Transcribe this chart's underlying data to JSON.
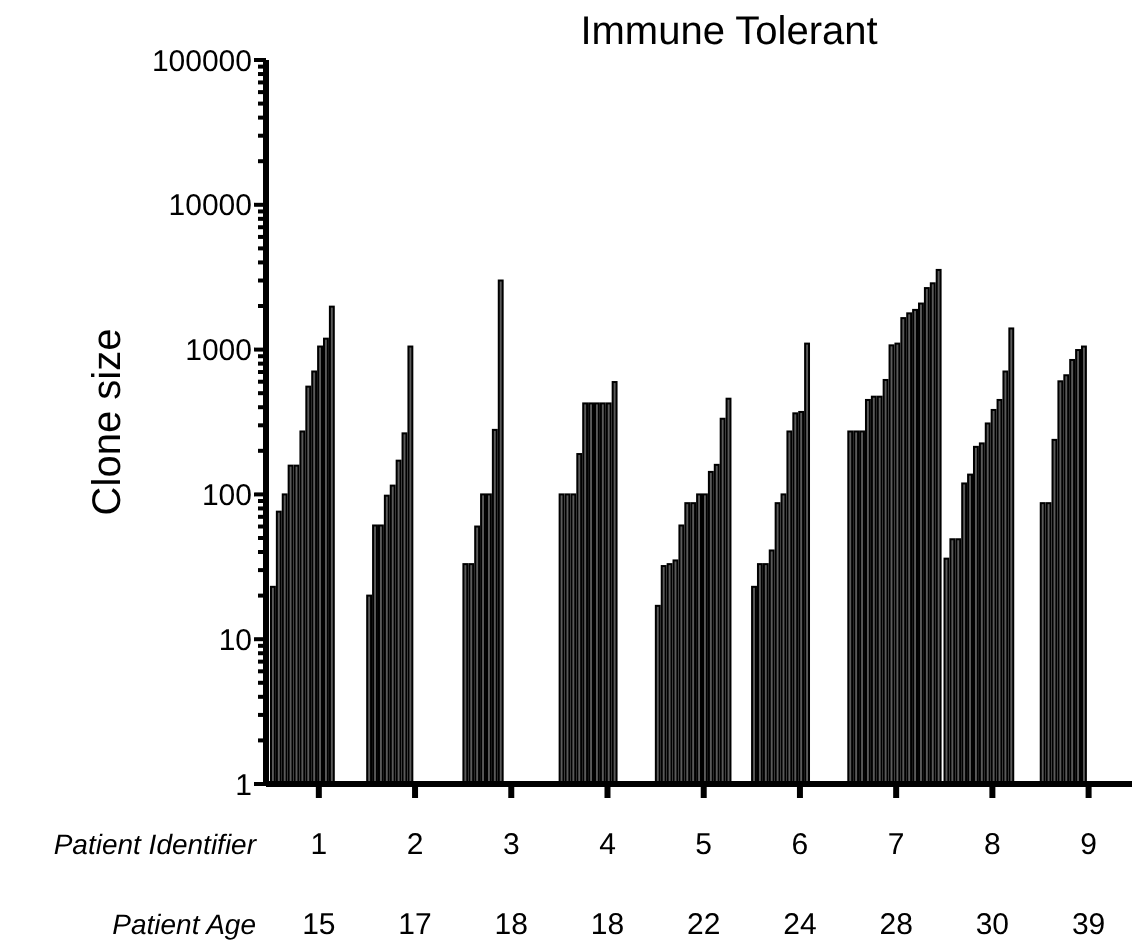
{
  "chart_data": {
    "type": "bar",
    "title": "Immune Tolerant",
    "ylabel": "Clone size",
    "xlabel": "Patient Identifier",
    "categories": [
      "1",
      "2",
      "3",
      "4",
      "5",
      "6",
      "7",
      "8",
      "9"
    ],
    "series": [
      {
        "color": "#5a5a5a",
        "values": [
          23,
          20,
          33,
          100,
          17,
          23,
          272,
          36,
          87
        ]
      },
      {
        "color": "#5a5a5a",
        "values": [
          76,
          61,
          33,
          100,
          32,
          33,
          272,
          49,
          87
        ]
      },
      {
        "color": "#5a5a5a",
        "values": [
          100,
          61,
          60,
          100,
          33,
          33,
          272,
          49,
          238
        ]
      },
      {
        "color": "#5a5a5a",
        "values": [
          158,
          98,
          100,
          190,
          35,
          41,
          449,
          119,
          604
        ]
      },
      {
        "color": "#5a5a5a",
        "values": [
          158,
          115,
          100,
          425,
          61,
          87,
          473,
          137,
          665
        ]
      },
      {
        "color": "#5a5a5a",
        "values": [
          272,
          171,
          279,
          425,
          87,
          100,
          473,
          213,
          848
        ]
      },
      {
        "color": "#5a5a5a",
        "values": [
          555,
          264,
          3000,
          425,
          87,
          272,
          617,
          225,
          993
        ]
      },
      {
        "color": "#5a5a5a",
        "values": [
          706,
          1050,
          null,
          425,
          100,
          363,
          1070,
          309,
          1050
        ]
      },
      {
        "color": "#5a5a5a",
        "values": [
          1050,
          null,
          null,
          425,
          100,
          371,
          1100,
          383,
          null
        ]
      },
      {
        "color": "#5a5a5a",
        "values": [
          1190,
          null,
          null,
          597,
          143,
          1100,
          1650,
          449,
          null
        ]
      },
      {
        "color": "#5a5a5a",
        "values": [
          1980,
          null,
          null,
          null,
          160,
          null,
          1780,
          706,
          null
        ]
      },
      {
        "color": "#5a5a5a",
        "values": [
          null,
          null,
          null,
          null,
          333,
          null,
          1880,
          1400,
          null
        ]
      },
      {
        "color": "#5a5a5a",
        "values": [
          null,
          null,
          null,
          null,
          458,
          null,
          2080,
          null,
          null
        ]
      },
      {
        "color": "#5a5a5a",
        "values": [
          null,
          null,
          null,
          null,
          null,
          null,
          2660,
          null,
          null
        ]
      },
      {
        "color": "#5a5a5a",
        "values": [
          null,
          null,
          null,
          null,
          null,
          null,
          2870,
          null,
          null
        ]
      },
      {
        "color": "#5a5a5a",
        "values": [
          null,
          null,
          null,
          null,
          null,
          null,
          3550,
          null,
          null
        ]
      }
    ],
    "log": true,
    "ylim": [
      1,
      100000
    ],
    "yticks": [
      1,
      {
        "value": 2,
        "label": null
      },
      {
        "value": 3,
        "label": null
      },
      {
        "value": 4,
        "label": null
      },
      {
        "value": 5,
        "label": null
      },
      {
        "value": 6,
        "label": null
      },
      {
        "value": 7,
        "label": null
      },
      {
        "value": 8,
        "label": null
      },
      {
        "value": 9,
        "label": null
      },
      10,
      {
        "value": 20,
        "label": null
      },
      {
        "value": 30,
        "label": null
      },
      {
        "value": 40,
        "label": null
      },
      {
        "value": 50,
        "label": null
      },
      {
        "value": 60,
        "label": null
      },
      {
        "value": 70,
        "label": null
      },
      {
        "value": 80,
        "label": null
      },
      {
        "value": 90,
        "label": null
      },
      100,
      {
        "value": 200,
        "label": null
      },
      {
        "value": 300,
        "label": null
      },
      {
        "value": 400,
        "label": null
      },
      {
        "value": 500,
        "label": null
      },
      {
        "value": 600,
        "label": null
      },
      {
        "value": 700,
        "label": null
      },
      {
        "value": 800,
        "label": null
      },
      {
        "value": 900,
        "label": null
      },
      1000,
      {
        "value": 2000,
        "label": null
      },
      {
        "value": 3000,
        "label": null
      },
      {
        "value": 4000,
        "label": null
      },
      {
        "value": 5000,
        "label": null
      },
      {
        "value": 6000,
        "label": null
      },
      {
        "value": 7000,
        "label": null
      },
      {
        "value": 8000,
        "label": null
      },
      {
        "value": 9000,
        "label": null
      },
      10000,
      {
        "value": 20000,
        "label": null
      },
      {
        "value": 30000,
        "label": null
      },
      {
        "value": 40000,
        "label": null
      },
      {
        "value": 50000,
        "label": null
      },
      {
        "value": 60000,
        "label": null
      },
      {
        "value": 70000,
        "label": null
      },
      {
        "value": 80000,
        "label": null
      },
      {
        "value": 90000,
        "label": null
      },
      100000
    ],
    "annotations": [
      "Patient Age",
      "15",
      "17",
      "18",
      "18",
      "22",
      "24",
      "28",
      "30",
      "39"
    ]
  }
}
